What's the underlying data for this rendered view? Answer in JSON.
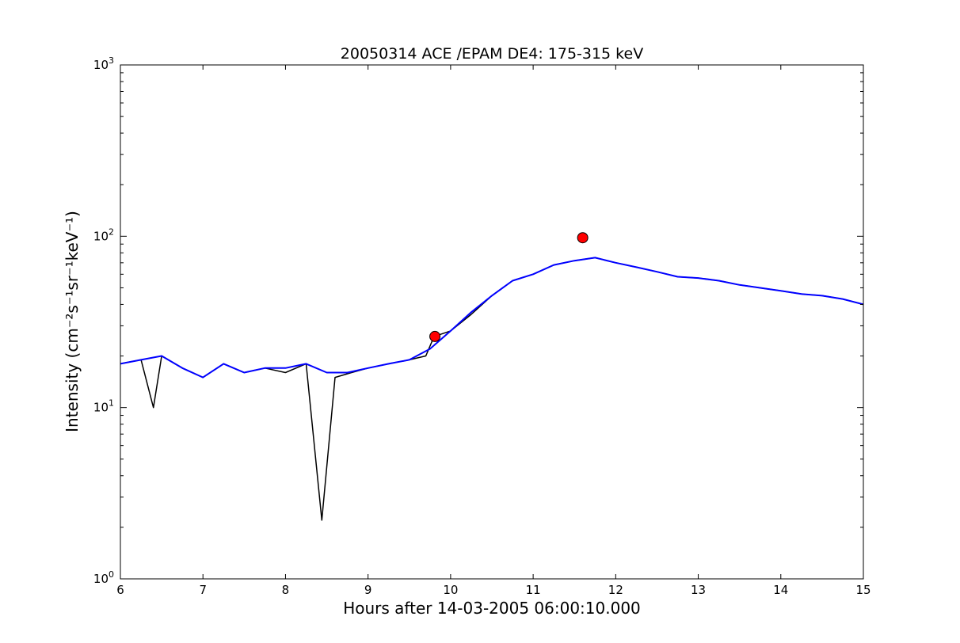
{
  "chart_data": {
    "type": "line",
    "title": "20050314 ACE /EPAM DE4: 175-315 keV",
    "xlabel": "Hours after 14-03-2005 06:00:10.000",
    "ylabel": "Intensity (cm⁻²s⁻¹sr⁻¹keV⁻¹)",
    "xlim": [
      6,
      15
    ],
    "ylim": [
      1,
      1000
    ],
    "yscale": "log",
    "grid": false,
    "xticks": [
      "6",
      "7",
      "8",
      "9",
      "10",
      "11",
      "12",
      "13",
      "14",
      "15"
    ],
    "yticks": [
      {
        "base": "10",
        "exp": "0"
      },
      {
        "base": "10",
        "exp": "1"
      },
      {
        "base": "10",
        "exp": "2"
      },
      {
        "base": "10",
        "exp": "3"
      }
    ],
    "colors": {
      "raw": "#000000",
      "smoothed": "#0000ff",
      "marker": "#ff0000"
    },
    "series": [
      {
        "type": "line",
        "color": "black",
        "x": [
          6.0,
          6.25,
          6.4,
          6.5,
          6.75,
          7.0,
          7.25,
          7.5,
          7.75,
          8.0,
          8.25,
          8.44,
          8.6,
          8.8,
          9.0,
          9.25,
          9.5,
          9.7,
          9.8,
          10.0,
          10.25,
          10.5,
          10.75,
          11.0,
          11.25,
          11.5,
          11.75,
          12.0,
          12.25,
          12.5,
          12.75,
          13.0,
          13.25,
          13.5,
          13.75,
          14.0,
          14.25,
          14.5,
          14.75,
          15.0
        ],
        "y": [
          18,
          19,
          10,
          20,
          17,
          15,
          18,
          16,
          17,
          16,
          18,
          2.2,
          15,
          16,
          17,
          18,
          19,
          20,
          26,
          28,
          35,
          45,
          55,
          60,
          68,
          72,
          75,
          70,
          66,
          62,
          58,
          57,
          55,
          52,
          50,
          48,
          46,
          45,
          43,
          40
        ]
      },
      {
        "type": "line",
        "color": "blue",
        "x": [
          6.0,
          6.25,
          6.5,
          6.75,
          7.0,
          7.25,
          7.5,
          7.75,
          8.0,
          8.25,
          8.5,
          8.75,
          9.0,
          9.25,
          9.5,
          9.75,
          10.0,
          10.25,
          10.5,
          10.75,
          11.0,
          11.25,
          11.5,
          11.75,
          12.0,
          12.25,
          12.5,
          12.75,
          13.0,
          13.25,
          13.5,
          13.75,
          14.0,
          14.25,
          14.5,
          14.75,
          15.0
        ],
        "y": [
          18,
          19,
          20,
          17,
          15,
          18,
          16,
          17,
          17,
          18,
          16,
          16,
          17,
          18,
          19,
          22,
          28,
          36,
          45,
          55,
          60,
          68,
          72,
          75,
          70,
          66,
          62,
          58,
          57,
          55,
          52,
          50,
          48,
          46,
          45,
          43,
          40
        ]
      },
      {
        "type": "scatter",
        "color": "red",
        "x": [
          9.81,
          11.6
        ],
        "y": [
          26,
          98
        ]
      }
    ]
  }
}
